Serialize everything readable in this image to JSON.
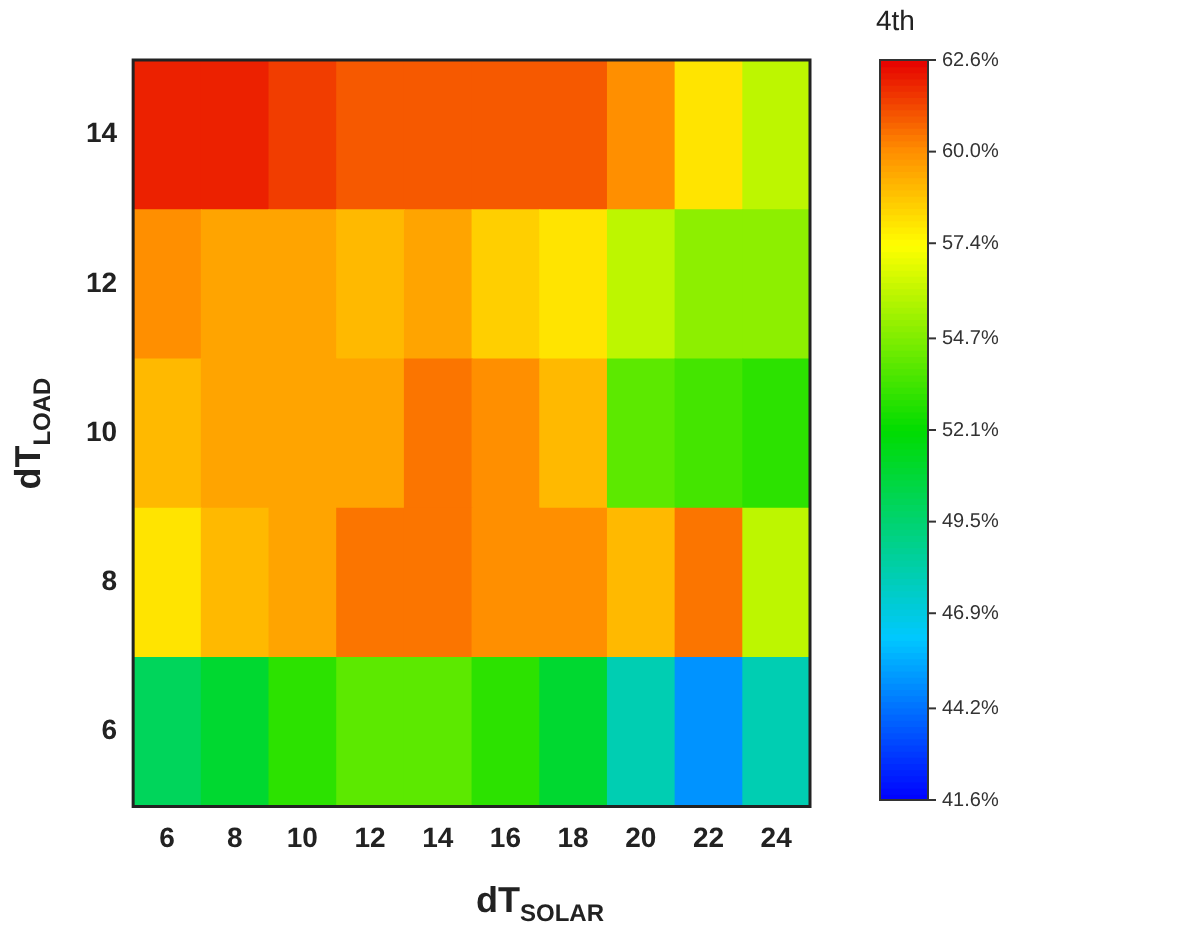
{
  "chart_data": {
    "type": "heatmap",
    "xlabel": "dT$_{SOLAR}$",
    "ylabel": "dT$_{LOAD}$",
    "clabel": "4th",
    "categories": [
      "6",
      "8",
      "10",
      "12",
      "14",
      "16",
      "18",
      "20",
      "22",
      "24"
    ],
    "y_categories": [
      "14",
      "12",
      "10",
      "8",
      "6"
    ],
    "cells": [
      [
        62,
        62,
        61.5,
        61,
        61,
        61,
        61,
        60,
        58,
        56
      ],
      [
        60,
        59.5,
        59.5,
        59,
        59.5,
        58.5,
        58,
        56,
        55,
        55
      ],
      [
        59,
        59.5,
        59.5,
        59.5,
        60.5,
        60,
        59,
        54,
        53.5,
        53
      ],
      [
        58,
        59,
        59.5,
        60.5,
        60.5,
        60,
        60,
        59,
        60.5,
        56
      ],
      [
        50,
        51,
        53,
        54,
        54,
        53,
        51,
        48,
        45,
        48
      ]
    ],
    "clim": [
      41.6,
      62.6
    ],
    "cticks": [
      {
        "value": 41.6,
        "label": "41.6%"
      },
      {
        "value": 44.2,
        "label": "44.2%"
      },
      {
        "value": 46.9,
        "label": "46.9%"
      },
      {
        "value": 49.5,
        "label": "49.5%"
      },
      {
        "value": 52.1,
        "label": "52.1%"
      },
      {
        "value": 54.7,
        "label": "54.7%"
      },
      {
        "value": 57.4,
        "label": "57.4%"
      },
      {
        "value": 60.0,
        "label": "60.0%"
      },
      {
        "value": 62.6,
        "label": "62.6%"
      }
    ]
  }
}
